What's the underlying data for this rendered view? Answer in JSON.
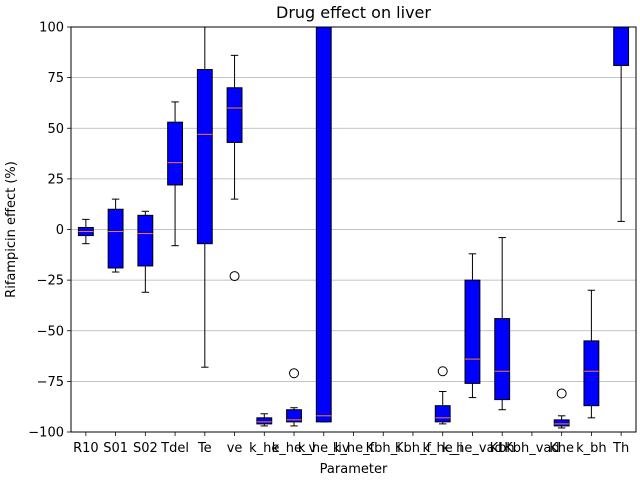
{
  "chart_data": {
    "type": "box",
    "title": "Drug effect on liver",
    "xlabel": "Parameter",
    "ylabel": "Rifampicin effect (%)",
    "ylim": [
      -100,
      100
    ],
    "yticks": [
      -100,
      -75,
      -50,
      -25,
      0,
      25,
      50,
      75,
      100
    ],
    "grid": "horizontal",
    "colors": {
      "box_fill": "#0000ff",
      "median": "#ff7f0e",
      "grid": "#b0b0b0",
      "line": "#000000"
    },
    "categories": [
      "R10",
      "S01",
      "S02",
      "Tdel",
      "Te",
      "ve",
      "k_he",
      "k_he_v",
      "k_he_liv",
      "k_he_f",
      "Kbh_i",
      "Kbh_f",
      "k_he_i",
      "k_he_vad",
      "Kbh",
      "Kbh_vad",
      "Khe",
      "k_bh",
      "Th"
    ],
    "boxes": [
      {
        "whislo": -7,
        "q1": -3,
        "med": -1,
        "q3": 1,
        "whishi": 5,
        "fliers": []
      },
      {
        "whislo": -21,
        "q1": -19,
        "med": -1,
        "q3": 10,
        "whishi": 15,
        "fliers": []
      },
      {
        "whislo": -31,
        "q1": -18,
        "med": -2,
        "q3": 7,
        "whishi": 9,
        "fliers": []
      },
      {
        "whislo": -8,
        "q1": 22,
        "med": 33,
        "q3": 53,
        "whishi": 63,
        "fliers": []
      },
      {
        "whislo": -68,
        "q1": -7,
        "med": 47,
        "q3": 79,
        "whishi": 100,
        "fliers": []
      },
      {
        "whislo": 15,
        "q1": 43,
        "med": 60,
        "q3": 70,
        "whishi": 86,
        "fliers": [
          -23
        ]
      },
      {
        "whislo": -97,
        "q1": -96,
        "med": -95,
        "q3": -93,
        "whishi": -91,
        "fliers": []
      },
      {
        "whislo": -97,
        "q1": -95,
        "med": -94,
        "q3": -89,
        "whishi": -88,
        "fliers": [
          -71
        ]
      },
      {
        "whislo": -95,
        "q1": -95,
        "med": -92,
        "q3": 100,
        "whishi": 100,
        "fliers": []
      },
      null,
      null,
      null,
      {
        "whislo": -96,
        "q1": -95,
        "med": -93,
        "q3": -87,
        "whishi": -80,
        "fliers": [
          -70
        ]
      },
      {
        "whislo": -83,
        "q1": -76,
        "med": -64,
        "q3": -25,
        "whishi": -12,
        "fliers": []
      },
      {
        "whislo": -89,
        "q1": -84,
        "med": -70,
        "q3": -44,
        "whishi": -4,
        "fliers": []
      },
      null,
      {
        "whislo": -98,
        "q1": -97,
        "med": -96,
        "q3": -94,
        "whishi": -92,
        "fliers": [
          -81
        ]
      },
      {
        "whislo": -93,
        "q1": -87,
        "med": -70,
        "q3": -55,
        "whishi": -30,
        "fliers": []
      },
      {
        "whislo": 4,
        "q1": 81,
        "med": 100,
        "q3": 100,
        "whishi": 100,
        "fliers": []
      }
    ]
  }
}
